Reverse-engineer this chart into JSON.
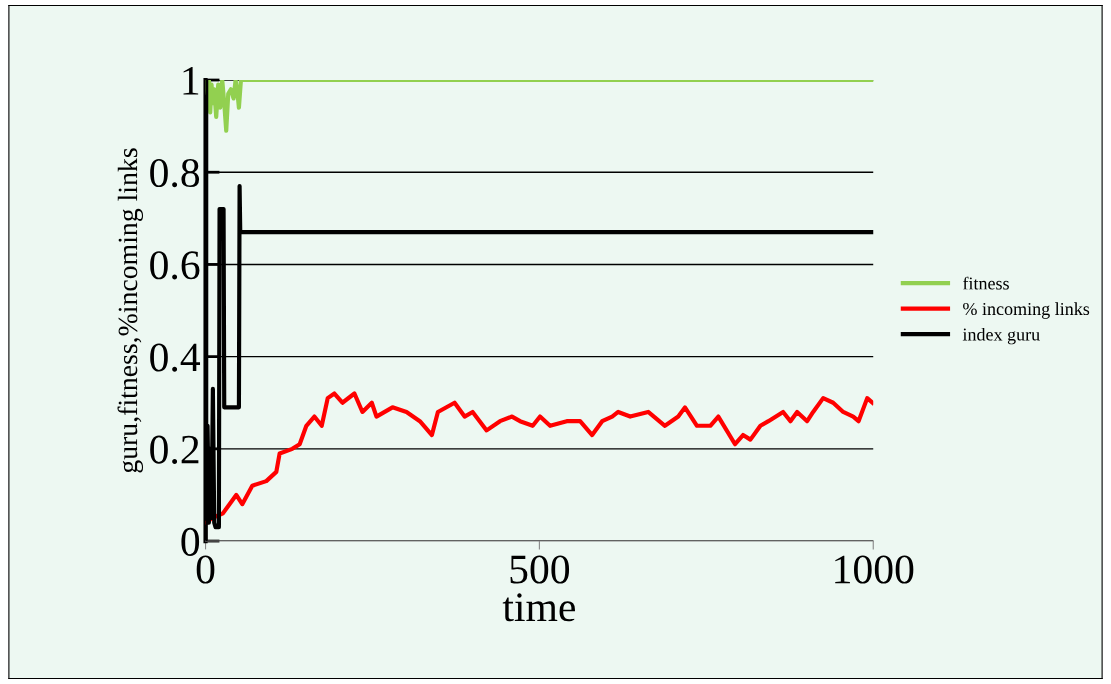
{
  "chart_data": {
    "type": "line",
    "xlabel": "time",
    "ylabel": "guru,fitness,%incoming links",
    "xlim": [
      0,
      1000
    ],
    "xticks": [
      0,
      500,
      1000
    ],
    "ylim": [
      0,
      1
    ],
    "yticks": [
      0,
      {
        "value": 0.2,
        "label": "0.2"
      },
      {
        "value": 0.4,
        "label": "0.4"
      },
      {
        "value": 0.6,
        "label": "0.6"
      },
      {
        "value": 0.8,
        "label": "0.8"
      },
      1
    ],
    "grid": "y",
    "legend": "right",
    "marker": "none",
    "line_style": "solid",
    "series": [
      {
        "name": "fitness",
        "color": "#92d050",
        "x": [
          0,
          3,
          5,
          7,
          9,
          11,
          13,
          16,
          19,
          22,
          25,
          28,
          31,
          34,
          38,
          42,
          45,
          48,
          50,
          53,
          1000
        ],
        "values": [
          1,
          0.97,
          1,
          0.93,
          0.99,
          0.95,
          0.98,
          0.92,
          0.99,
          0.94,
          1,
          0.95,
          0.89,
          0.97,
          0.98,
          0.96,
          1,
          0.97,
          0.94,
          1,
          1
        ]
      },
      {
        "name": "% incoming links",
        "color": "#ff0000",
        "x": [
          1.5,
          10,
          26,
          46,
          55,
          70,
          91,
          106,
          111,
          130,
          141,
          151,
          163,
          174,
          183,
          193,
          205,
          223,
          235,
          249,
          256,
          280,
          301,
          321,
          339,
          348,
          373,
          388,
          400,
          421,
          441,
          459,
          471,
          490,
          501,
          516,
          541,
          561,
          579,
          594,
          609,
          618,
          636,
          663,
          688,
          708,
          718,
          736,
          756,
          768,
          793,
          805,
          816,
          831,
          843,
          865,
          876,
          886,
          901,
          910,
          925,
          940,
          955,
          970,
          978,
          991,
          999
        ],
        "values": [
          0.04,
          0.05,
          0.06,
          0.1,
          0.08,
          0.12,
          0.13,
          0.15,
          0.19,
          0.2,
          0.21,
          0.25,
          0.27,
          0.25,
          0.31,
          0.32,
          0.3,
          0.32,
          0.28,
          0.3,
          0.27,
          0.29,
          0.28,
          0.26,
          0.23,
          0.28,
          0.3,
          0.27,
          0.28,
          0.24,
          0.26,
          0.27,
          0.26,
          0.25,
          0.27,
          0.25,
          0.26,
          0.26,
          0.23,
          0.26,
          0.27,
          0.28,
          0.27,
          0.28,
          0.25,
          0.27,
          0.29,
          0.25,
          0.25,
          0.27,
          0.21,
          0.23,
          0.22,
          0.25,
          0.26,
          0.28,
          0.26,
          0.28,
          0.26,
          0.28,
          0.31,
          0.3,
          0.28,
          0.27,
          0.26,
          0.31,
          0.3
        ]
      },
      {
        "name": "index guru",
        "color": "#000000",
        "x": [
          0,
          0,
          1,
          1,
          3,
          5,
          7,
          9,
          11,
          13,
          15,
          20,
          21,
          27,
          28,
          50,
          51,
          52,
          1000
        ],
        "values": [
          0,
          1,
          1,
          0.05,
          0.25,
          0.04,
          0.2,
          0.05,
          0.33,
          0.04,
          0.03,
          0.03,
          0.72,
          0.72,
          0.29,
          0.29,
          0.77,
          0.67,
          0.67
        ]
      }
    ]
  }
}
